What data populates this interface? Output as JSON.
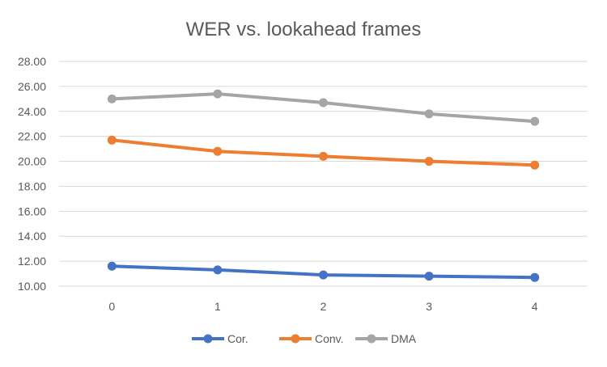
{
  "chart_data": {
    "type": "line",
    "title": "WER vs. lookahead frames",
    "xlabel": "",
    "ylabel": "",
    "categories": [
      "0",
      "1",
      "2",
      "3",
      "4"
    ],
    "ylim": [
      10,
      28
    ],
    "ytick_labels": [
      "10.00",
      "12.00",
      "14.00",
      "16.00",
      "18.00",
      "20.00",
      "22.00",
      "24.00",
      "26.00",
      "28.00"
    ],
    "grid": true,
    "legend_position": "bottom",
    "series": [
      {
        "name": "Cor.",
        "color": "#4472c4",
        "values": [
          11.6,
          11.3,
          10.9,
          10.8,
          10.7
        ]
      },
      {
        "name": "Conv.",
        "color": "#ed7d31",
        "values": [
          21.7,
          20.8,
          20.4,
          20.0,
          19.7
        ]
      },
      {
        "name": "DMA",
        "color": "#a5a5a5",
        "values": [
          25.0,
          25.4,
          24.7,
          23.8,
          23.2
        ]
      }
    ]
  }
}
